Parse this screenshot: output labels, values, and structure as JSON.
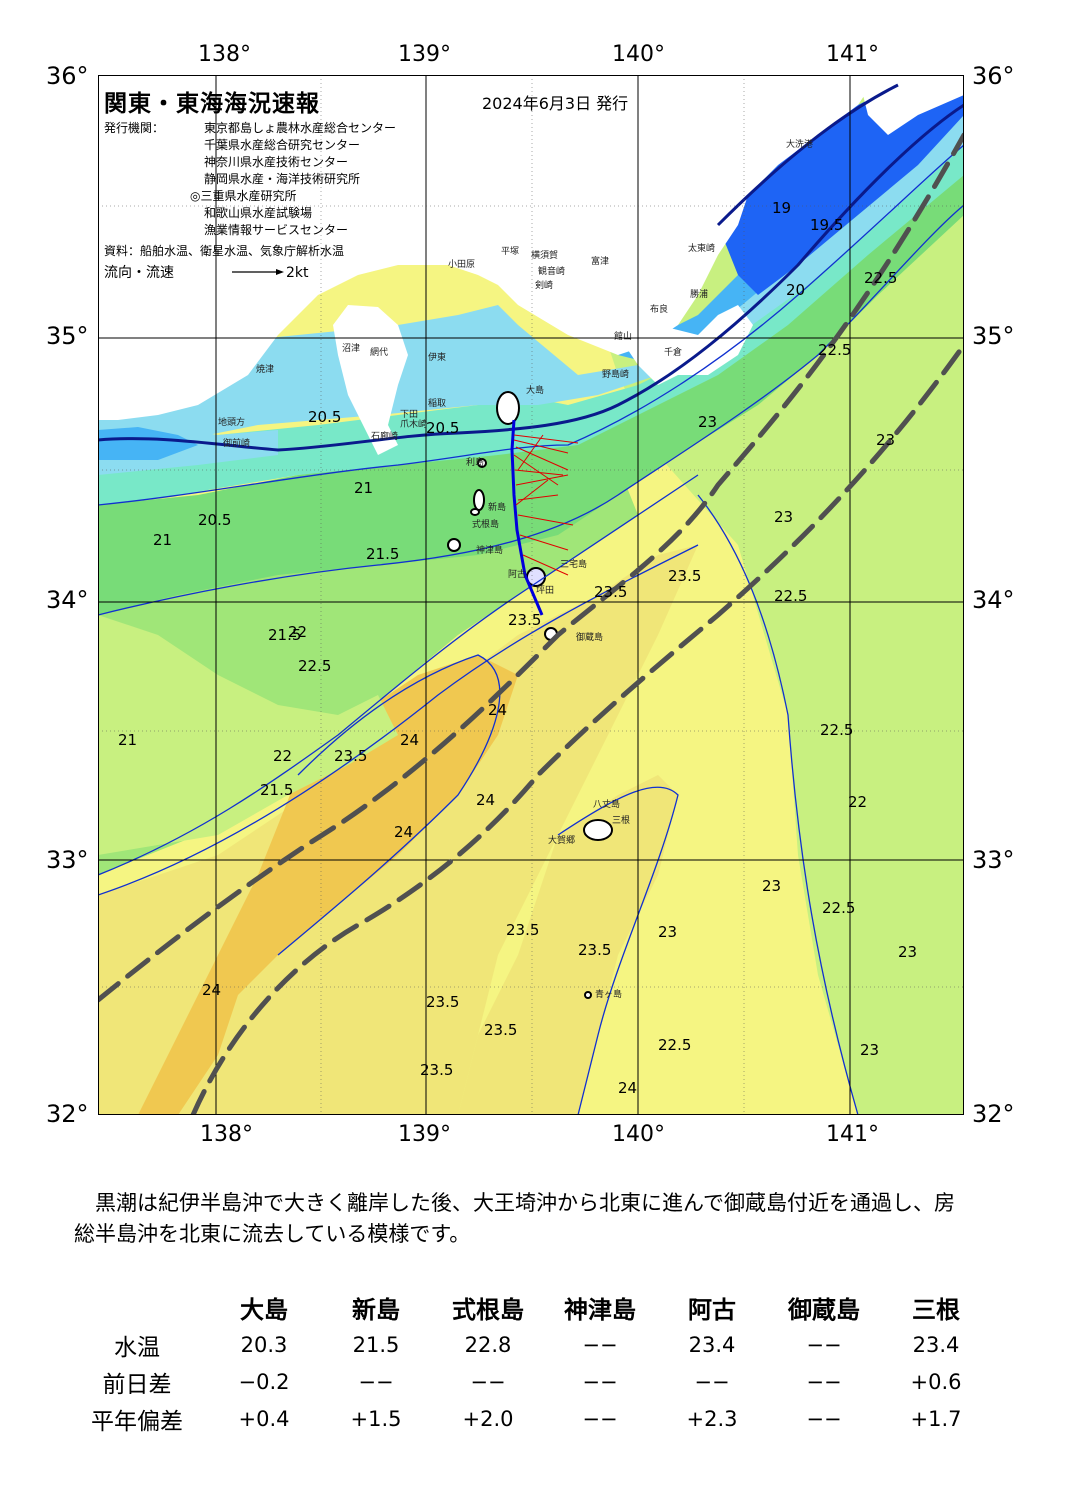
{
  "header": {
    "title": "関東・東海海況速報",
    "date": "2024年6月3日 発行",
    "issuer_label": "発行機関：",
    "issuers": [
      "東京都島しょ農林水産総合センター",
      "千葉県水産総合研究センター",
      "神奈川県水産技術センター",
      "静岡県水産・海洋技術研究所",
      "◎三重県水産研究所",
      "和歌山県水産試験場",
      "漁業情報サービスセンター"
    ],
    "source": "資料：船舶水温、衛星水温、気象庁解析水温",
    "flow_label": "流向・流速",
    "flow_scale": "2kt"
  },
  "axes": {
    "lon_top": [
      "138°",
      "139°",
      "140°",
      "141°"
    ],
    "lon_bottom": [
      "138°",
      "139°",
      "140°",
      "141°"
    ],
    "lat_left": [
      "36°",
      "35°",
      "34°",
      "33°",
      "32°"
    ],
    "lat_right": [
      "36°",
      "35°",
      "34°",
      "33°",
      "32°"
    ]
  },
  "places": [
    "大洗港",
    "太東崎",
    "勝浦",
    "布良",
    "千倉",
    "野島崎",
    "大島",
    "利島",
    "新島",
    "式根島",
    "神津島",
    "三宅島",
    "阿古",
    "坪田",
    "御蔵島",
    "八丈島",
    "大賀郷",
    "三根",
    "青ヶ島",
    "小田原",
    "平塚",
    "横須賀",
    "富津",
    "観音崎",
    "剣崎",
    "館山",
    "伊東",
    "稲取",
    "下田",
    "石廊崎",
    "爪木崎",
    "網代",
    "御前崎",
    "焼津",
    "地頭方",
    "沼津"
  ],
  "isotherm_labels": [
    "19",
    "19.5",
    "20",
    "20.5",
    "20.5",
    "20.5",
    "21",
    "21",
    "21",
    "21.5",
    "21.5",
    "21.5",
    "22",
    "22",
    "22",
    "22.5",
    "22.5",
    "22.5",
    "22.5",
    "22.5",
    "22.5",
    "22.5",
    "23",
    "23",
    "23",
    "23",
    "23",
    "23",
    "23",
    "23.5",
    "23.5",
    "23.5",
    "23.5",
    "23.5",
    "23.5",
    "23.5",
    "23.5",
    "23.5",
    "24",
    "24",
    "24",
    "24",
    "24",
    "24"
  ],
  "colors": {
    "temp_19": "#1e64f5",
    "temp_20": "#46b4f5",
    "temp_20_5": "#8cdcf0",
    "temp_21": "#78e8c8",
    "temp_21_5": "#78dc78",
    "temp_22": "#a0e678",
    "temp_22_5": "#c8f080",
    "temp_23": "#f5f582",
    "temp_23_5": "#f0e678",
    "temp_24": "#f0c850",
    "land": "#ffffff",
    "kuroshio_axis": "#505050",
    "ship_track": "#0000dc",
    "current_vector": "#e00000"
  },
  "summary": "黒潮は紀伊半島沖で大きく離岸した後、大王埼沖から北東に進んで御蔵島付近を通過し、房総半島沖を北東に流去している模様です。",
  "table": {
    "stations": [
      "大島",
      "新島",
      "式根島",
      "神津島",
      "阿古",
      "御蔵島",
      "三根"
    ],
    "rows": [
      {
        "label": "水温",
        "values": [
          "20.3",
          "21.5",
          "22.8",
          "−−",
          "23.4",
          "−−",
          "23.4"
        ]
      },
      {
        "label": "前日差",
        "values": [
          "−0.2",
          "−−",
          "−−",
          "−−",
          "−−",
          "−−",
          "+0.6"
        ]
      },
      {
        "label": "平年偏差",
        "values": [
          "+0.4",
          "+1.5",
          "+2.0",
          "−−",
          "+2.3",
          "−−",
          "+1.7"
        ]
      }
    ]
  }
}
